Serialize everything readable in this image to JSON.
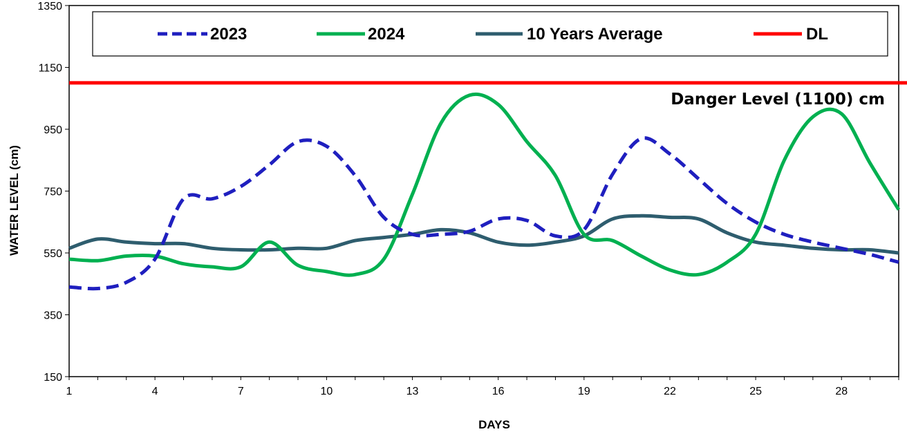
{
  "chart_data": {
    "type": "line",
    "xlabel": "DAYS",
    "ylabel": "WATER LEVEL (cm)",
    "xlim": [
      1,
      30
    ],
    "ylim": [
      150,
      1350
    ],
    "x_ticks": [
      1,
      4,
      7,
      10,
      13,
      16,
      19,
      22,
      25,
      28
    ],
    "y_ticks": [
      150,
      350,
      550,
      750,
      950,
      1150,
      1350
    ],
    "grid": false,
    "legend_position": "top",
    "x": [
      1,
      2,
      3,
      4,
      5,
      6,
      7,
      8,
      9,
      10,
      11,
      12,
      13,
      14,
      15,
      16,
      17,
      18,
      19,
      20,
      21,
      22,
      23,
      24,
      25,
      26,
      27,
      28,
      29,
      30
    ],
    "series": [
      {
        "name": "2023",
        "color": "#1f1fbf",
        "style": "dashed",
        "values": [
          440,
          435,
          455,
          530,
          725,
          725,
          765,
          835,
          910,
          895,
          800,
          665,
          610,
          610,
          620,
          660,
          655,
          605,
          625,
          805,
          920,
          870,
          790,
          710,
          650,
          610,
          585,
          565,
          545,
          520
        ]
      },
      {
        "name": "2024",
        "color": "#00b050",
        "style": "solid",
        "values": [
          530,
          525,
          540,
          540,
          515,
          505,
          505,
          585,
          510,
          490,
          480,
          530,
          740,
          970,
          1060,
          1030,
          910,
          800,
          610,
          590,
          540,
          495,
          480,
          520,
          610,
          850,
          990,
          1000,
          840,
          690
        ]
      },
      {
        "name": "10 Years Average",
        "color": "#2e5d6e",
        "style": "solid",
        "values": [
          565,
          595,
          585,
          580,
          580,
          565,
          560,
          560,
          565,
          565,
          590,
          600,
          610,
          625,
          615,
          585,
          575,
          585,
          605,
          660,
          670,
          665,
          660,
          615,
          585,
          575,
          565,
          560,
          560,
          550
        ]
      }
    ],
    "reference_lines": [
      {
        "name": "DL",
        "value": 1100,
        "color": "#ff0000",
        "label": "Danger Level (1100) cm"
      }
    ]
  }
}
